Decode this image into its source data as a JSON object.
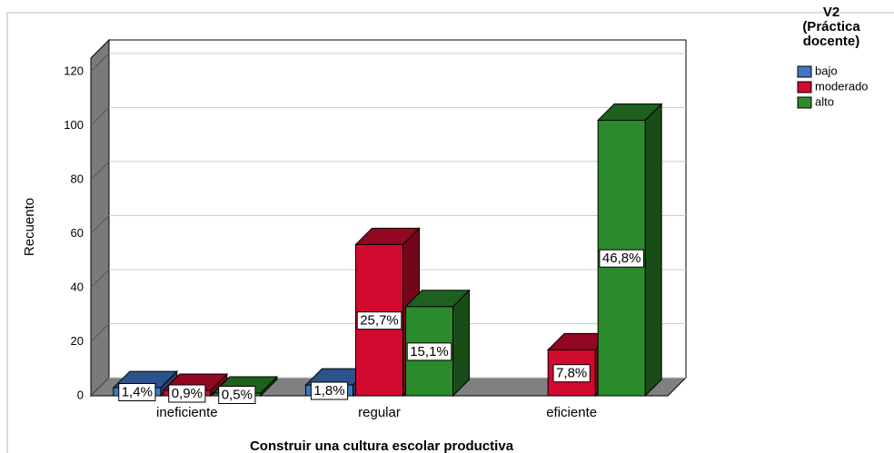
{
  "chart_data": {
    "type": "bar3d",
    "x_label": "Construir una  cultura escolar  productiva",
    "y_label": "Recuento",
    "legend_title": [
      "V2",
      "(Práctica",
      "docente)"
    ],
    "categories": [
      "ineficiente",
      "regular",
      "eficiente"
    ],
    "series": [
      {
        "name": "bajo",
        "color": "#3f77c4",
        "values": [
          3,
          4,
          null
        ],
        "percents": [
          1.4,
          1.8,
          null
        ],
        "percent_labels": [
          "1,4%",
          "1,8%",
          null
        ]
      },
      {
        "name": "moderado",
        "color": "#d10a30",
        "values": [
          2,
          56,
          17
        ],
        "percents": [
          0.9,
          25.7,
          7.8
        ],
        "percent_labels": [
          "0,9%",
          "25,7%",
          "7,8%"
        ]
      },
      {
        "name": "alto",
        "color": "#2b8a2b",
        "values": [
          1,
          33,
          102
        ],
        "percents": [
          0.5,
          15.1,
          46.8
        ],
        "percent_labels": [
          "0,5%",
          "15,1%",
          "46,8%"
        ]
      }
    ],
    "ylim": [
      0,
      125
    ],
    "yticks": [
      0,
      20,
      40,
      60,
      80,
      100,
      120
    ],
    "grid": true,
    "legend": "right"
  }
}
